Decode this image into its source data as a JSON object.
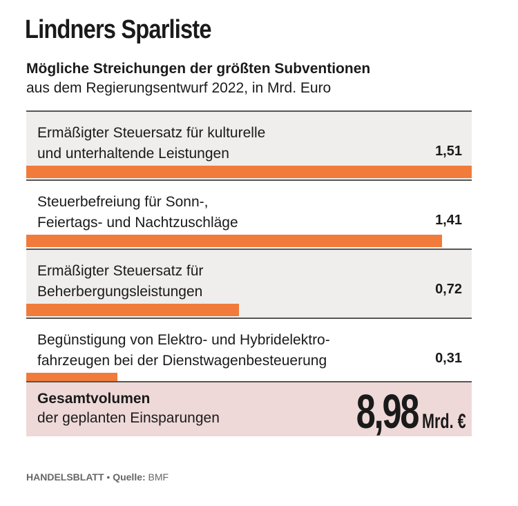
{
  "header": {
    "title": "Lindners Sparliste",
    "subtitle": "Mögliche Streichungen der größten Subventionen",
    "subtitle2": "aus dem Regierungsentwurf 2022, in Mrd. Euro"
  },
  "chart_data": {
    "type": "bar",
    "orientation": "horizontal",
    "title": "Lindners Sparliste",
    "subtitle": "Mögliche Streichungen der größten Subventionen",
    "unit_note": "aus dem Regierungsentwurf 2022, in Mrd. Euro",
    "categories": [
      "Ermäßigter Steuersatz für kulturelle\nund unterhaltende Leistungen",
      "Steuerbefreiung für Sonn-,\nFeiertags- und Nachtzuschläge",
      "Ermäßigter Steuersatz für\nBeherbergungsleistungen",
      "Begünstigung von Elektro- und Hybridelektro-\nfahrzeugen bei der Dienstwagenbesteuerung"
    ],
    "values": [
      1.51,
      1.41,
      0.72,
      0.31
    ],
    "value_labels": [
      "1,51",
      "1,41",
      "0,72",
      "0,31"
    ],
    "xlim": [
      0,
      1.51
    ],
    "bar_color": "#f07b3a",
    "grid": false,
    "total": {
      "label": "Gesamtvolumen",
      "sublabel": "der geplanten Einsparungen",
      "value": 8.98,
      "value_text": "8,98",
      "unit": "Mrd. €"
    }
  },
  "footer": {
    "brand": "HANDELSBLATT",
    "separator": " • ",
    "source_label": "Quelle:",
    "source": " BMF"
  }
}
